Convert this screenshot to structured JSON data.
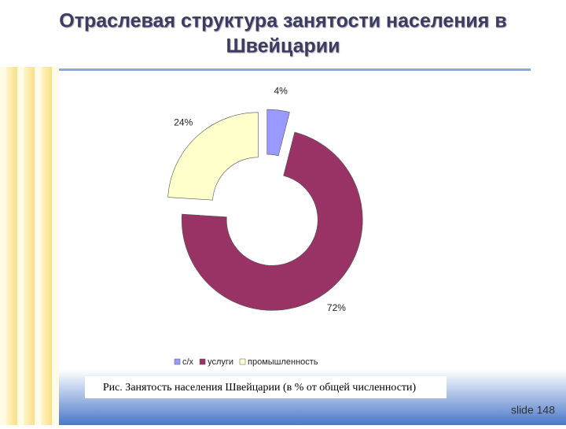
{
  "slide": {
    "title_lines": [
      "Отраслевая структура занятости населения в",
      "Швейцарии"
    ],
    "caption": "Рис. Занятость населения Швейцарии (в % от общей численности)",
    "footer": "slide 148"
  },
  "chart_data": {
    "type": "donut",
    "categories": [
      "с/х",
      "услуги",
      "промышленность"
    ],
    "values": [
      4,
      72,
      24
    ],
    "value_labels": [
      "4%",
      "72%",
      "24%"
    ],
    "colors": [
      "#9999ff",
      "#993366",
      "#ffffcc"
    ],
    "legend": "bottom"
  }
}
